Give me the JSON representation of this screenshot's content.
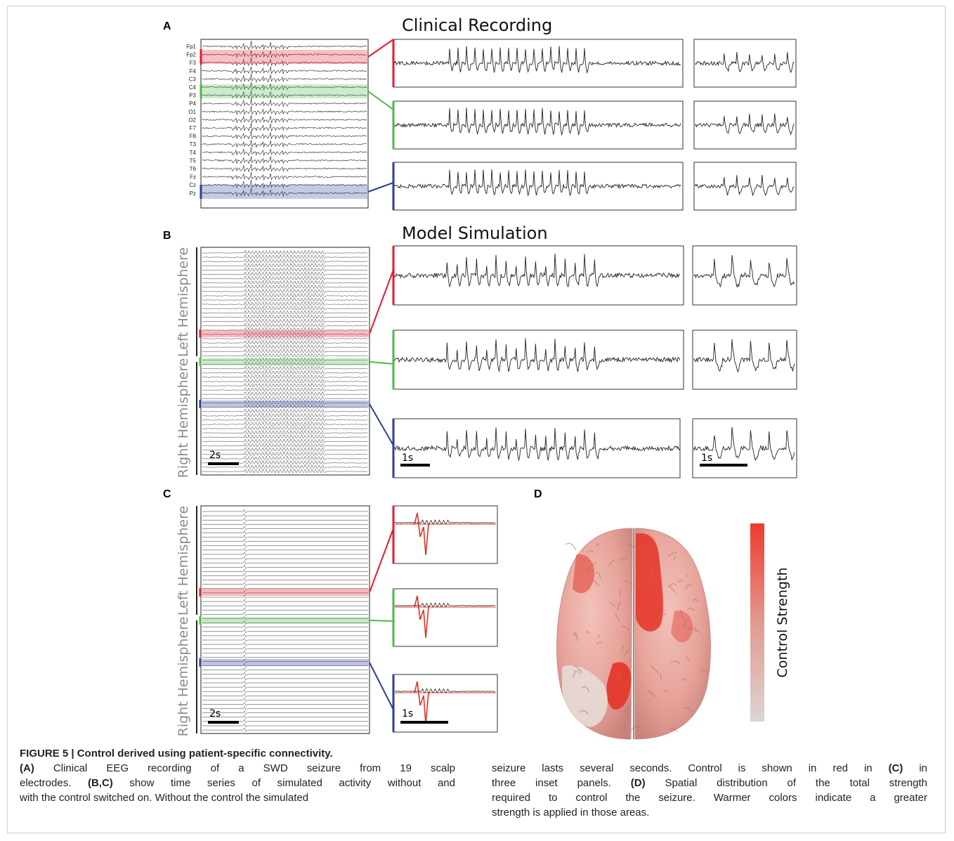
{
  "panels": {
    "a": {
      "letter": "A",
      "title": "Clinical Recording"
    },
    "b": {
      "letter": "B",
      "title": "Model Simulation"
    },
    "c": {
      "letter": "C"
    },
    "d": {
      "letter": "D",
      "colorbar_label": "Control Strength"
    }
  },
  "channels": [
    "Fp1",
    "Fp2",
    "F3",
    "F4",
    "C3",
    "C4",
    "P3",
    "P4",
    "O1",
    "O2",
    "F7",
    "F8",
    "T3",
    "T4",
    "T5",
    "T6",
    "Fz",
    "Cz",
    "Pz"
  ],
  "hemisphere_labels": {
    "left": "Left Hemisphere",
    "right": "Right Hemisphere"
  },
  "scalebars": {
    "raster": "2s",
    "trace": "1s"
  },
  "highlight_colors": {
    "red": "#e8192c",
    "green": "#4db848",
    "blue": "#2e3d9a",
    "control": "#e53025"
  },
  "caption": {
    "title": "FIGURE 5 | Control derived using patient-specific connectivity.",
    "left_lines": [
      {
        "bold": "(A)",
        "text": " Clinical EEG recording of a SWD seizure from 19 scalp"
      },
      {
        "bold": "",
        "text": "electrodes. "
      },
      {
        "bold": "",
        "text": "with the control switched on. Without the control the simulated"
      }
    ],
    "bc": "(B,C)",
    "bc_rest": " show time series of simulated activity without and",
    "right": {
      "l1": "seizure lasts several seconds. Control is shown in red in ",
      "l1b": "(C)",
      "l1c": " in",
      "l2": "three inset panels. ",
      "l2b": "(D)",
      "l2c": " Spatial distribution of the total strength",
      "l3": "required to control the seizure. Warmer colors indicate a greater",
      "l4": "strength is applied in those areas."
    }
  }
}
